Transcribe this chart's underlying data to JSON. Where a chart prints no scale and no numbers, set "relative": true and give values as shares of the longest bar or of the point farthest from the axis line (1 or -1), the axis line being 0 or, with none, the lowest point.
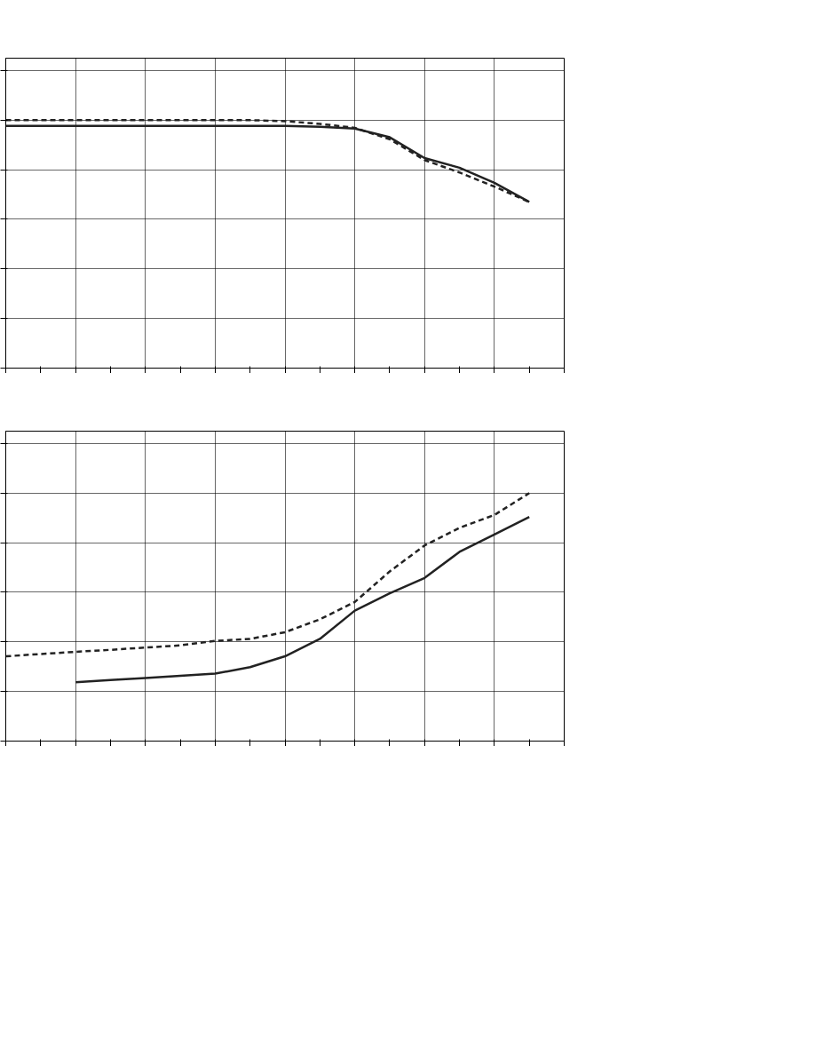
{
  "chart_data": [
    {
      "type": "line",
      "relative": true,
      "grid": true,
      "categories": [
        null,
        null,
        null,
        null,
        null,
        null,
        null,
        null,
        null,
        null,
        null,
        null,
        null,
        null,
        null,
        null,
        null
      ],
      "series": [
        {
          "color": "#222222",
          "line_style": "solid",
          "values": [
            0.977,
            0.977,
            0.977,
            0.977,
            0.977,
            0.977,
            0.977,
            0.977,
            0.977,
            0.973,
            0.966,
            0.931,
            0.847,
            0.808,
            0.747,
            0.67,
            null
          ]
        },
        {
          "color": "#222222",
          "line_style": "dashed",
          "values": [
            1.0,
            1.0,
            1.0,
            1.0,
            1.0,
            1.0,
            1.0,
            1.0,
            0.996,
            0.985,
            0.969,
            0.923,
            0.839,
            0.789,
            0.732,
            0.67,
            null
          ]
        }
      ]
    },
    {
      "type": "line",
      "relative": true,
      "grid": true,
      "categories": [
        null,
        null,
        null,
        null,
        null,
        null,
        null,
        null,
        null,
        null,
        null,
        null,
        null,
        null,
        null,
        null,
        null
      ],
      "series": [
        {
          "color": "#222222",
          "line_style": "solid",
          "values": [
            null,
            null,
            0.237,
            0.246,
            0.254,
            0.263,
            0.272,
            0.298,
            0.342,
            0.412,
            0.526,
            0.596,
            0.658,
            0.763,
            0.833,
            0.904,
            null
          ]
        },
        {
          "color": "#222222",
          "line_style": "dashed",
          "values": [
            0.342,
            0.351,
            0.36,
            0.368,
            0.377,
            0.386,
            0.404,
            0.412,
            0.439,
            0.491,
            0.561,
            0.684,
            0.789,
            0.86,
            0.912,
            1.0,
            null
          ]
        }
      ]
    }
  ]
}
